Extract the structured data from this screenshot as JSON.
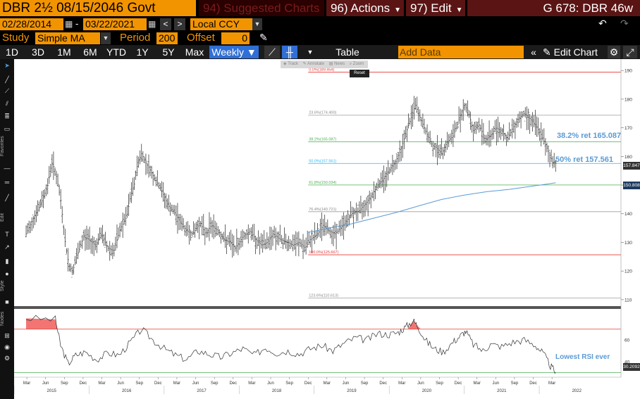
{
  "header": {
    "security": "DBR 2½ 08/15/2046 Govt",
    "suggested": "94) Suggested Charts",
    "actions": "96) Actions",
    "edit": "97) Edit",
    "ticker_right": "G 678: DBR 46w"
  },
  "row2": {
    "start_date": "02/28/2014",
    "end_date": "03/22/2021",
    "currency": "Local CCY"
  },
  "study": {
    "label": "Study",
    "value": "Simple MA",
    "period_label": "Period",
    "period_value": "200",
    "offset_label": "Offset",
    "offset_value": "0"
  },
  "toolbar": {
    "periods": [
      "1D",
      "3D",
      "1M",
      "6M",
      "YTD",
      "1Y",
      "5Y",
      "Max"
    ],
    "frequency": "Weekly",
    "table_label": "Table",
    "add_data_placeholder": "Add Data",
    "edit_chart": "Edit Chart"
  },
  "chart_toolbar": {
    "track": "Track",
    "annotate": "Annotate",
    "news": "News",
    "zoom": "Zoom",
    "reset": "Reset"
  },
  "left_tabs": [
    "Favorites",
    "Edit",
    "Style",
    "Nodes"
  ],
  "annotations": {
    "ret38": "38.2% ret 165.087",
    "ret50": "50% ret 157.561",
    "rsi_low": "Lowest RSI ever"
  },
  "fib_labels": [
    {
      "text": "0.0%(189.454)",
      "value": 189.454
    },
    {
      "text": "23.6%(174.400)",
      "value": 174.4
    },
    {
      "text": "38.2%(165.087)",
      "value": 165.087
    },
    {
      "text": "50.0%(157.561)",
      "value": 157.561
    },
    {
      "text": "61.8%(150.034)",
      "value": 150.034
    },
    {
      "text": "76.4%(140.721)",
      "value": 140.721
    },
    {
      "text": "100.0%(125.667)",
      "value": 125.667
    },
    {
      "text": "123.6%(110.613)",
      "value": 110.613
    }
  ],
  "last_price_label": "157.847",
  "ma_label": "150.808",
  "rsi_label": "30.2092",
  "colors": {
    "orange": "#f29400",
    "fib_red": "#e53935",
    "fib_green": "#4caf50",
    "fib_cyan": "#29b6f6",
    "fib_grey": "#9e9e9e",
    "ma_blue": "#5b9bd5",
    "annotation_blue": "#5b9bd5",
    "rsi_fill": "#ef5350"
  },
  "chart_data": {
    "type": "line",
    "series": [],
    "x_ticks_month": [
      "Mar",
      "Jun",
      "Sep",
      "Dec",
      "Mar",
      "Jun",
      "Sep",
      "Dec",
      "Mar",
      "Jun",
      "Sep",
      "Dec",
      "Mar",
      "Jun",
      "Sep",
      "Dec",
      "Mar",
      "Jun",
      "Sep",
      "Dec",
      "Mar",
      "Jun",
      "Sep",
      "Dec",
      "Mar",
      "Jun",
      "Sep",
      "Dec",
      "Mar"
    ],
    "x_ticks_year": [
      "2015",
      "2016",
      "2017",
      "2018",
      "2019",
      "2020",
      "2021",
      "2022"
    ],
    "price_ylim": [
      108,
      193
    ],
    "price_ticks": [
      110,
      120,
      130,
      140,
      150,
      160,
      170,
      180,
      190
    ],
    "rsi_ylim": [
      27,
      88
    ],
    "rsi_ticks": [
      40,
      60
    ],
    "rsi_overbought": 70,
    "rsi_oversold": 30,
    "price_points": [
      [
        2014.16,
        133
      ],
      [
        2014.25,
        138
      ],
      [
        2014.35,
        143
      ],
      [
        2014.45,
        150
      ],
      [
        2014.5,
        158
      ],
      [
        2014.55,
        155
      ],
      [
        2014.62,
        145
      ],
      [
        2014.68,
        130
      ],
      [
        2014.73,
        122
      ],
      [
        2014.78,
        120
      ],
      [
        2014.85,
        126
      ],
      [
        2014.93,
        132
      ],
      [
        2015.0,
        131
      ],
      [
        2015.08,
        129
      ],
      [
        2015.17,
        133
      ],
      [
        2015.25,
        128
      ],
      [
        2015.33,
        127
      ],
      [
        2015.42,
        135
      ],
      [
        2015.5,
        139
      ],
      [
        2015.55,
        146
      ],
      [
        2015.6,
        150
      ],
      [
        2015.65,
        158
      ],
      [
        2015.7,
        161
      ],
      [
        2015.75,
        158
      ],
      [
        2015.8,
        156
      ],
      [
        2015.88,
        152
      ],
      [
        2015.95,
        149
      ],
      [
        2016.05,
        143
      ],
      [
        2016.15,
        140
      ],
      [
        2016.22,
        137
      ],
      [
        2016.3,
        134
      ],
      [
        2016.38,
        133
      ],
      [
        2016.48,
        137
      ],
      [
        2016.55,
        133
      ],
      [
        2016.63,
        136
      ],
      [
        2016.72,
        134
      ],
      [
        2016.8,
        131
      ],
      [
        2016.88,
        130
      ],
      [
        2016.95,
        128
      ],
      [
        2017.05,
        132
      ],
      [
        2017.15,
        134
      ],
      [
        2017.22,
        131
      ],
      [
        2017.3,
        129
      ],
      [
        2017.38,
        130
      ],
      [
        2017.45,
        133
      ],
      [
        2017.55,
        131
      ],
      [
        2017.65,
        130
      ],
      [
        2017.72,
        129
      ],
      [
        2017.8,
        130
      ],
      [
        2017.88,
        128
      ],
      [
        2017.95,
        131
      ],
      [
        2018.05,
        133
      ],
      [
        2018.12,
        136
      ],
      [
        2018.2,
        134
      ],
      [
        2018.28,
        133
      ],
      [
        2018.35,
        135
      ],
      [
        2018.42,
        137
      ],
      [
        2018.5,
        140
      ],
      [
        2018.6,
        141
      ],
      [
        2018.7,
        144
      ],
      [
        2018.78,
        147
      ],
      [
        2018.85,
        150
      ],
      [
        2018.92,
        152
      ],
      [
        2019.0,
        155
      ],
      [
        2019.08,
        158
      ],
      [
        2019.15,
        162
      ],
      [
        2019.22,
        168
      ],
      [
        2019.3,
        174
      ],
      [
        2019.35,
        178
      ],
      [
        2019.42,
        173
      ],
      [
        2019.5,
        168
      ],
      [
        2019.57,
        164
      ],
      [
        2019.63,
        163
      ],
      [
        2019.7,
        161
      ],
      [
        2019.77,
        165
      ],
      [
        2019.85,
        167
      ],
      [
        2019.92,
        172
      ],
      [
        2020.0,
        178
      ],
      [
        2020.05,
        176
      ],
      [
        2020.12,
        169
      ],
      [
        2020.2,
        171
      ],
      [
        2020.28,
        166
      ],
      [
        2020.35,
        167
      ],
      [
        2020.42,
        170
      ],
      [
        2020.5,
        169
      ],
      [
        2020.58,
        166
      ],
      [
        2020.65,
        170
      ],
      [
        2020.72,
        173
      ],
      [
        2020.8,
        175
      ],
      [
        2020.88,
        173
      ],
      [
        2020.95,
        171
      ],
      [
        2021.02,
        168
      ],
      [
        2021.1,
        163
      ],
      [
        2021.18,
        158
      ],
      [
        2021.22,
        157.8
      ]
    ],
    "ma_points": [
      [
        2017.92,
        133.5
      ],
      [
        2018.2,
        135
      ],
      [
        2018.5,
        136.5
      ],
      [
        2018.8,
        138.5
      ],
      [
        2019.1,
        140.5
      ],
      [
        2019.4,
        142.8
      ],
      [
        2019.7,
        145
      ],
      [
        2020.0,
        146.5
      ],
      [
        2020.3,
        147.7
      ],
      [
        2020.6,
        148.5
      ],
      [
        2020.9,
        149.6
      ],
      [
        2021.22,
        150.8
      ]
    ],
    "rsi_points": [
      [
        2014.16,
        80
      ],
      [
        2014.55,
        79
      ],
      [
        2014.62,
        55
      ],
      [
        2014.72,
        38
      ],
      [
        2014.82,
        46
      ],
      [
        2014.95,
        49
      ],
      [
        2015.1,
        42
      ],
      [
        2015.25,
        48
      ],
      [
        2015.4,
        46
      ],
      [
        2015.55,
        58
      ],
      [
        2015.7,
        70
      ],
      [
        2015.85,
        60
      ],
      [
        2016.0,
        52
      ],
      [
        2016.15,
        46
      ],
      [
        2016.3,
        42
      ],
      [
        2016.45,
        50
      ],
      [
        2016.6,
        47
      ],
      [
        2016.75,
        44
      ],
      [
        2016.9,
        48
      ],
      [
        2017.05,
        52
      ],
      [
        2017.2,
        46
      ],
      [
        2017.35,
        53
      ],
      [
        2017.5,
        48
      ],
      [
        2017.65,
        50
      ],
      [
        2017.8,
        47
      ],
      [
        2017.95,
        52
      ],
      [
        2018.1,
        55
      ],
      [
        2018.25,
        50
      ],
      [
        2018.4,
        57
      ],
      [
        2018.55,
        62
      ],
      [
        2018.7,
        60
      ],
      [
        2018.85,
        66
      ],
      [
        2019.0,
        65
      ],
      [
        2019.12,
        67
      ],
      [
        2019.22,
        72
      ],
      [
        2019.32,
        78
      ],
      [
        2019.38,
        73
      ],
      [
        2019.48,
        60
      ],
      [
        2019.6,
        52
      ],
      [
        2019.72,
        49
      ],
      [
        2019.85,
        58
      ],
      [
        2019.95,
        64
      ],
      [
        2020.02,
        68
      ],
      [
        2020.12,
        56
      ],
      [
        2020.25,
        50
      ],
      [
        2020.35,
        56
      ],
      [
        2020.5,
        54
      ],
      [
        2020.65,
        58
      ],
      [
        2020.8,
        60
      ],
      [
        2020.95,
        55
      ],
      [
        2021.05,
        48
      ],
      [
        2021.15,
        36
      ],
      [
        2021.22,
        30.2
      ]
    ]
  }
}
